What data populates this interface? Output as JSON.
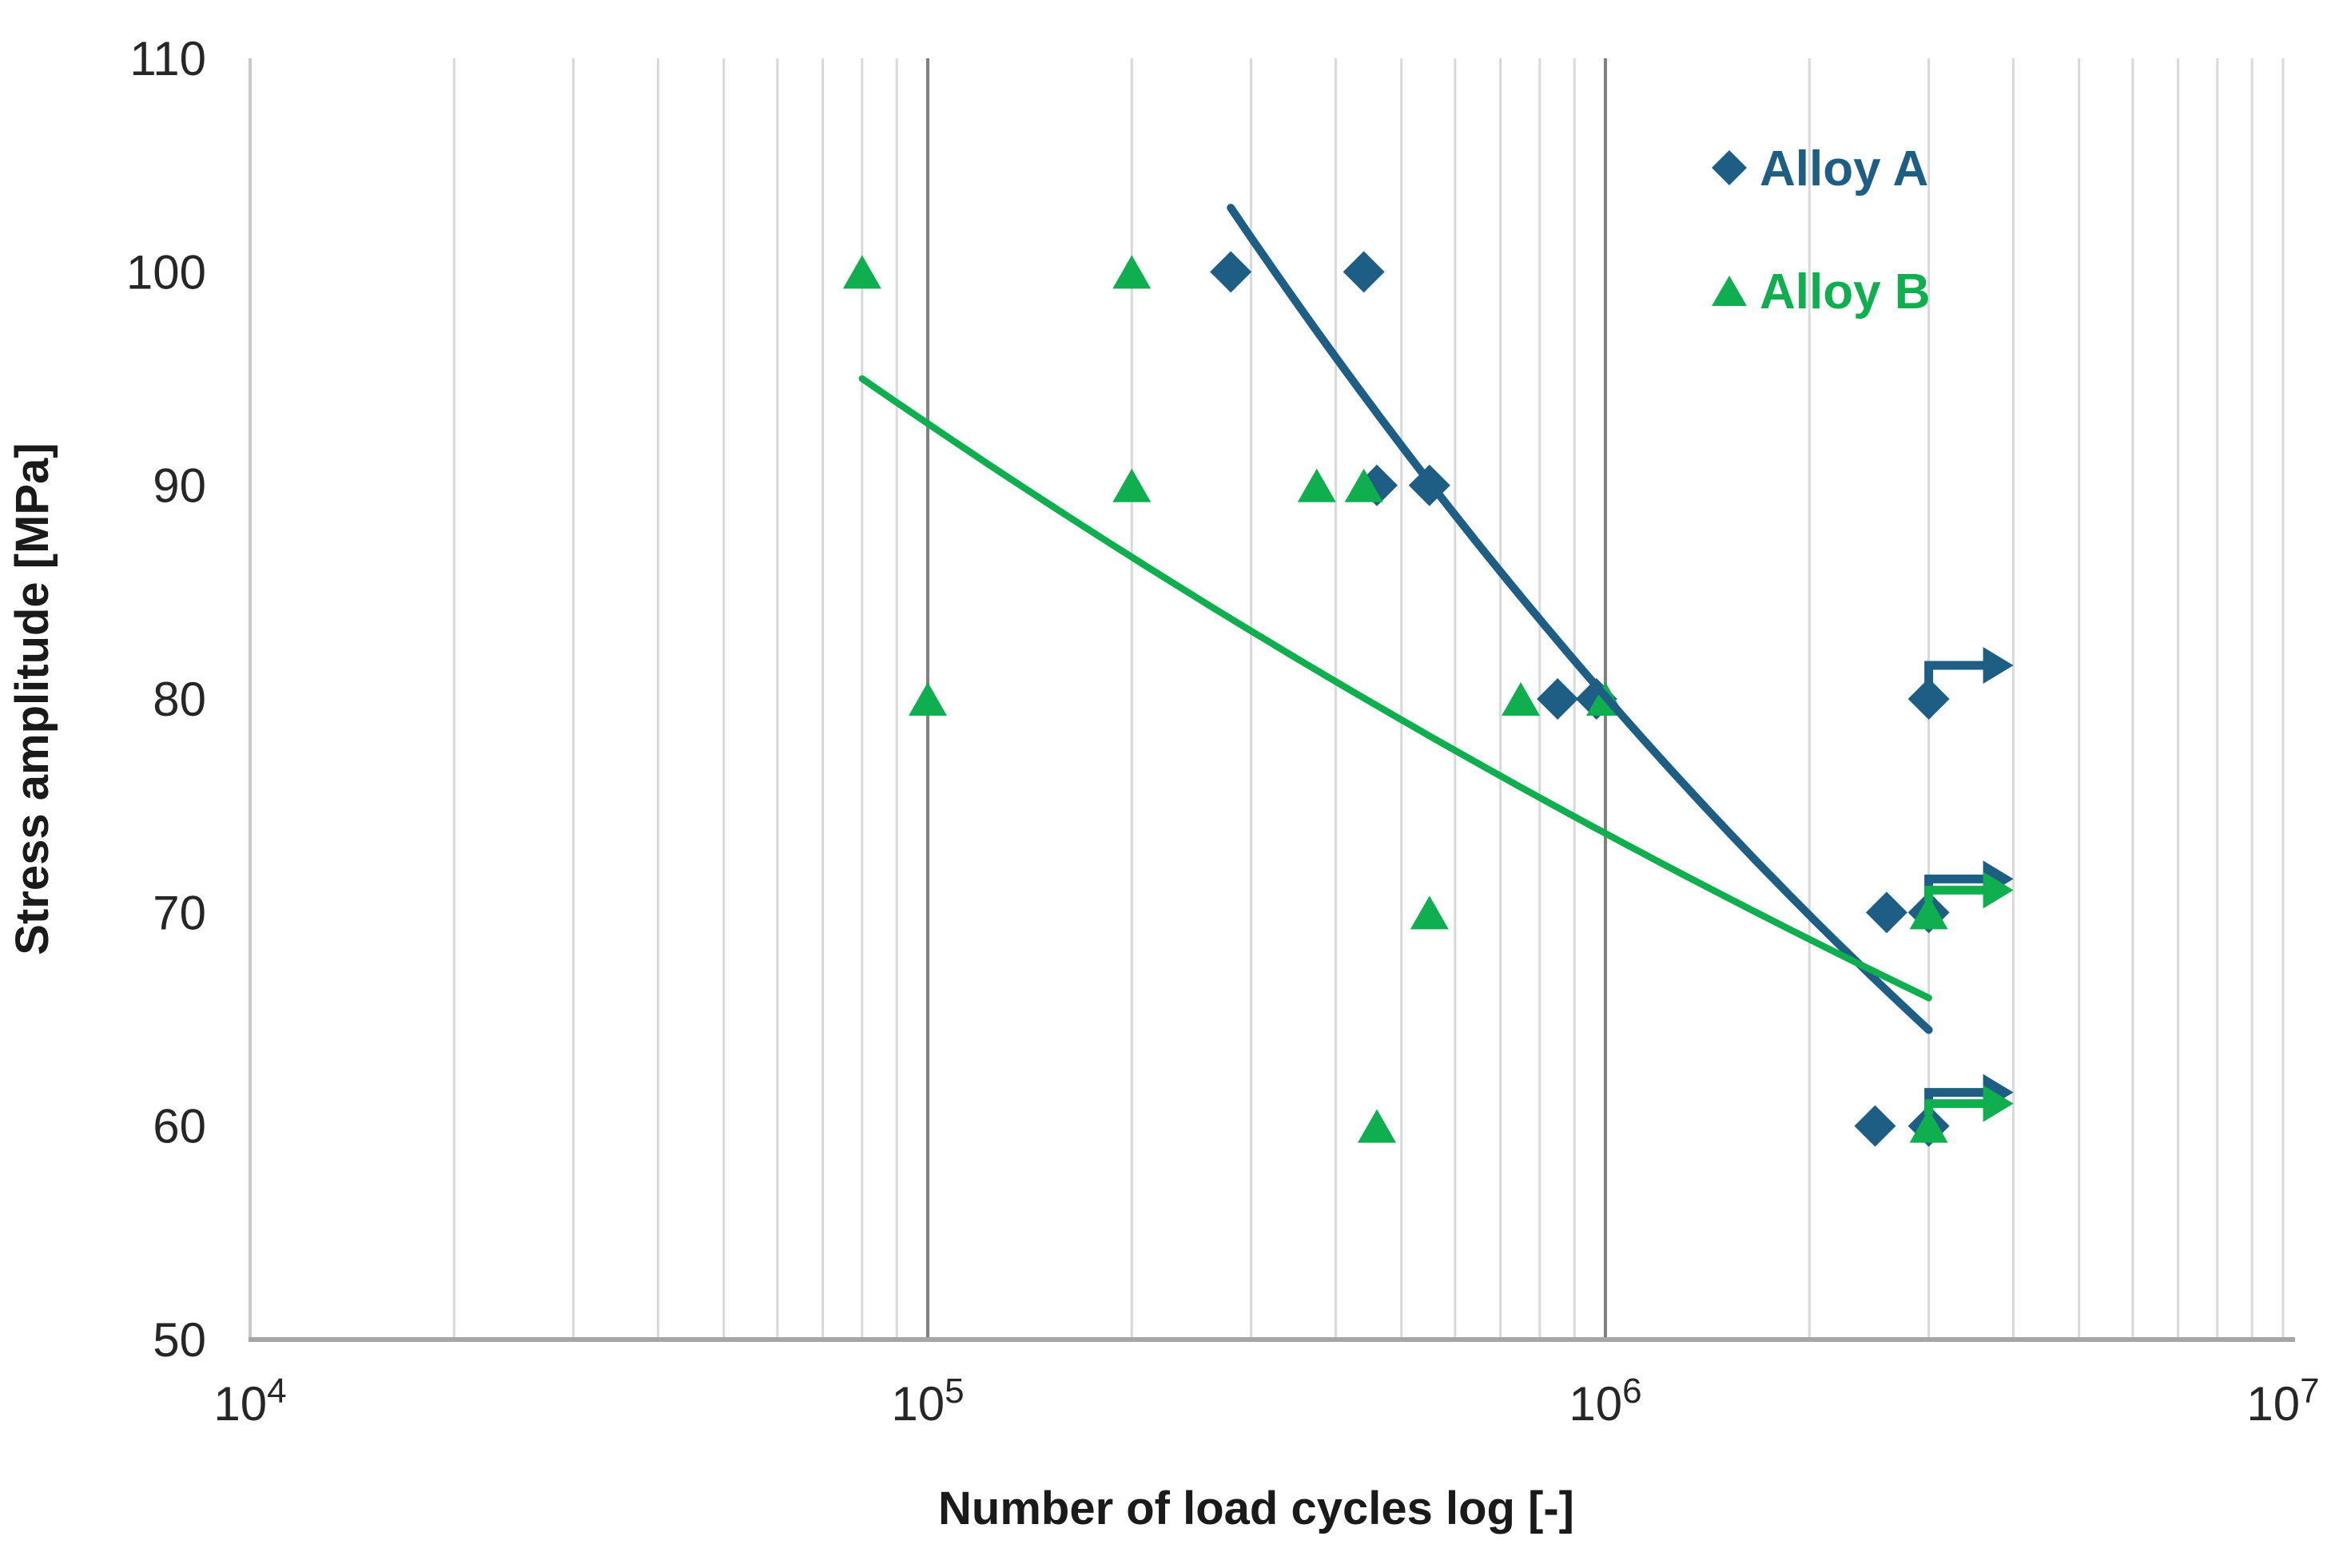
{
  "page": {
    "background": "#FFFFFF"
  },
  "chart_data": {
    "type": "scatter",
    "title": "",
    "xlabel": "Number of load cycles log [-]",
    "ylabel": "Stress amplitude [MPa]",
    "x_scale": "log",
    "xlim": [
      10000,
      10000000
    ],
    "ylim": [
      50,
      110
    ],
    "y_ticks": [
      110,
      100,
      90,
      80,
      70,
      60,
      50
    ],
    "x_ticks": [
      {
        "value": 10000,
        "base": "10",
        "exponent": "4"
      },
      {
        "value": 100000,
        "base": "10",
        "exponent": "5"
      },
      {
        "value": 1000000,
        "base": "10",
        "exponent": "6"
      },
      {
        "value": 10000000,
        "base": "10",
        "exponent": "7"
      }
    ],
    "grid": {
      "vertical_minor_log": true,
      "major_lines_at": [
        100000,
        1000000
      ],
      "minor_color": "#D9D9D9",
      "major_color": "#808080",
      "x_axis_color": "#A6A6A6",
      "y_axis_color": "#C9C9C9"
    },
    "legend": {
      "position": "top-right-inside"
    },
    "series": [
      {
        "name": "Alloy A",
        "marker": "diamond",
        "color": "#1E5E85",
        "points": [
          [
            280000,
            100
          ],
          [
            440000,
            100
          ],
          [
            460000,
            90
          ],
          [
            550000,
            90
          ],
          [
            850000,
            80
          ],
          [
            970000,
            80
          ],
          [
            3000000,
            80
          ],
          [
            2600000,
            70
          ],
          [
            3000000,
            70
          ],
          [
            2500000,
            60
          ],
          [
            3000000,
            60
          ]
        ],
        "runout_points": [
          [
            3000000,
            80
          ],
          [
            3000000,
            70
          ],
          [
            3000000,
            60
          ]
        ],
        "trendline": {
          "shape": "power",
          "start": [
            280000,
            103
          ],
          "end": [
            3000000,
            64.5
          ]
        }
      },
      {
        "name": "Alloy B",
        "marker": "triangle",
        "color": "#0FAE4E",
        "points": [
          [
            80000,
            100
          ],
          [
            200000,
            100
          ],
          [
            200000,
            90
          ],
          [
            375000,
            90
          ],
          [
            440000,
            90
          ],
          [
            100000,
            80
          ],
          [
            750000,
            80
          ],
          [
            1000000,
            80
          ],
          [
            550000,
            70
          ],
          [
            3000000,
            70
          ],
          [
            460000,
            60
          ],
          [
            3000000,
            60
          ]
        ],
        "runout_points": [
          [
            3000000,
            70
          ],
          [
            3000000,
            60
          ]
        ],
        "trendline": {
          "shape": "power",
          "start": [
            80000,
            95
          ],
          "end": [
            3000000,
            66
          ]
        }
      }
    ]
  }
}
